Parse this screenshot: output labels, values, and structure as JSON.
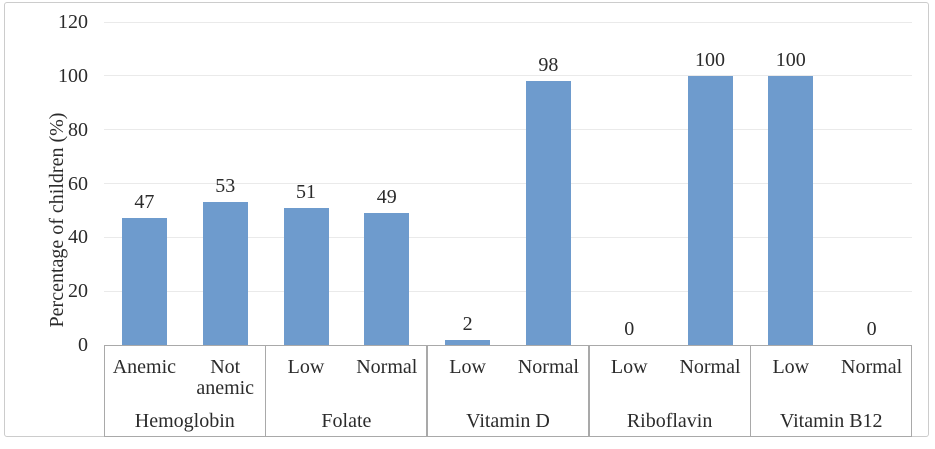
{
  "chart_data": {
    "type": "bar",
    "title": "",
    "xlabel": "",
    "ylabel": "Percentage of children (%)",
    "ylim": [
      0,
      120
    ],
    "yticks": [
      0,
      20,
      40,
      60,
      80,
      100,
      120
    ],
    "grid": true,
    "legend": false,
    "bar_color": "#6E9BCD",
    "categories": [
      "Anemic",
      "Not anemic",
      "Low",
      "Normal",
      "Low",
      "Normal",
      "Low",
      "Normal",
      "Low",
      "Normal"
    ],
    "values": [
      47,
      53,
      51,
      49,
      2,
      98,
      0,
      100,
      100,
      0
    ],
    "groups": [
      {
        "label": "Hemoglobin",
        "bars": [
          {
            "label": "Anemic",
            "value": 47
          },
          {
            "label": "Not anemic",
            "value": 53
          }
        ]
      },
      {
        "label": "Folate",
        "bars": [
          {
            "label": "Low",
            "value": 51
          },
          {
            "label": "Normal",
            "value": 49
          }
        ]
      },
      {
        "label": "Vitamin D",
        "bars": [
          {
            "label": "Low",
            "value": 2
          },
          {
            "label": "Normal",
            "value": 98
          }
        ]
      },
      {
        "label": "Riboflavin",
        "bars": [
          {
            "label": "Low",
            "value": 0
          },
          {
            "label": "Normal",
            "value": 100
          }
        ]
      },
      {
        "label": "Vitamin B12",
        "bars": [
          {
            "label": "Low",
            "value": 100
          },
          {
            "label": "Normal",
            "value": 0
          }
        ]
      }
    ]
  },
  "colors": {
    "bar": "#6E9BCD",
    "gridline": "#EAEAEA",
    "axis_box": "#A9A9A9",
    "text": "#2B2B2B",
    "figure_border": "#CCCCCC",
    "background": "#FFFFFF"
  }
}
